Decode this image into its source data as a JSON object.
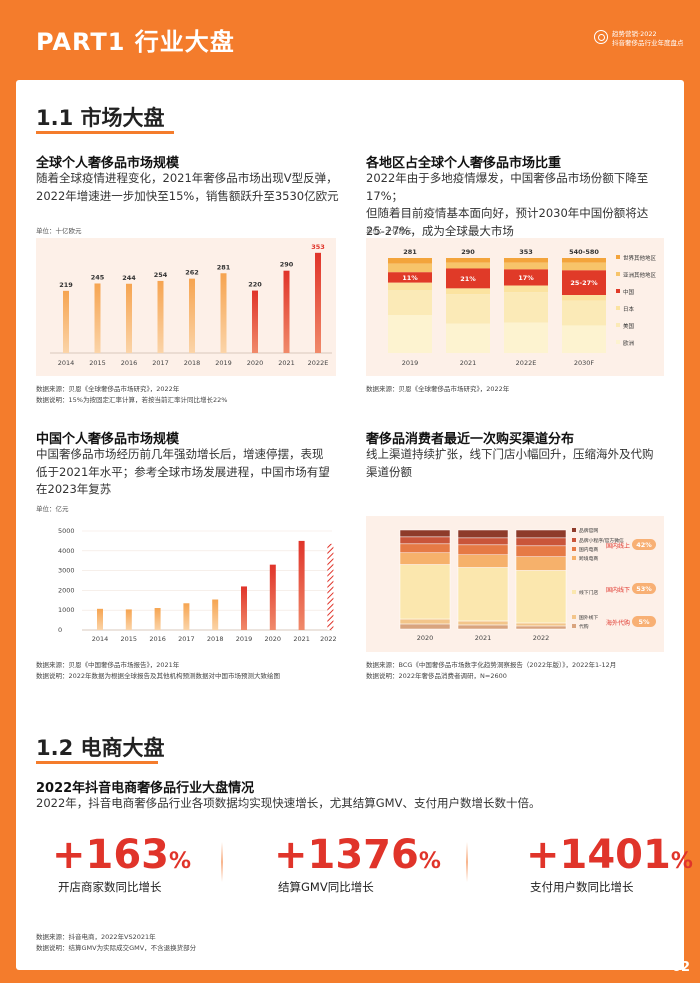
{
  "header": {
    "title": "PART1 行业大盘",
    "brand_line1": "趋势营销·2022",
    "brand_line2": "抖音奢侈品行业年度盘点"
  },
  "section1": {
    "title": "1.1 市场大盘",
    "global": {
      "heading": "全球个人奢侈品市场规模",
      "desc1": "随着全球疫情进程变化，2021年奢侈品市场出现V型反弹，",
      "desc2": "2022年增速进一步加快至15%，销售额跃升至3530亿欧元",
      "unit": "单位：十亿欧元",
      "source": "数据来源：贝恩《全球奢侈品市场研究》，2022年",
      "note": "数据说明：15%为按固定汇率计算，若按当前汇率计同比增长22%"
    },
    "regions": {
      "heading": "各地区占全球个人奢侈品市场比重",
      "desc1": "2022年由于多地疫情爆发，中国奢侈品市场份额下降至17%；",
      "desc2": "但随着目前疫情基本面向好，预计2030年中国份额将达",
      "desc3": "25-27%，成为全球最大市场",
      "unit": "单位：十亿欧元",
      "source": "数据来源：贝恩《全球奢侈品市场研究》，2022年"
    },
    "china": {
      "heading": "中国个人奢侈品市场规模",
      "desc1": "中国奢侈品市场经历前几年强劲增长后，增速停摆，表现",
      "desc2": "低于2021年水平；参考全球市场发展进程，中国市场有望",
      "desc3": "在2023年复苏",
      "unit": "单位：亿元",
      "source": "数据来源：贝恩《中国奢侈品市场报告》，2021年",
      "note": "数据说明：2022年数据为根据全球报告及其他机构预测数据对中国市场预测大致绘图"
    },
    "channels": {
      "heading": "奢侈品消费者最近一次购买渠道分布",
      "desc1": "线上渠道持续扩张，线下门店小幅回升，压缩海外及代购",
      "desc2": "渠道份额",
      "source": "数据来源：BCG《中国奢侈品市场数字化趋势洞察报告（2022年版）》，2022年1-12月",
      "note": "数据说明：2022年奢侈品消费者调研，N=2600"
    }
  },
  "section2": {
    "title": "1.2 电商大盘",
    "heading": "2022年抖音电商奢侈品行业大盘情况",
    "desc": "2022年，抖音电商奢侈品行业各项数据均实现快速增长，尤其结算GMV、支付用户数增长数十倍。",
    "stats": [
      {
        "num": "+163",
        "pct": "%",
        "label": "开店商家数同比增长"
      },
      {
        "num": "+1376",
        "pct": "%",
        "label": "结算GMV同比增长"
      },
      {
        "num": "+1401",
        "pct": "%",
        "label": "支付用户数同比增长"
      }
    ],
    "source": "数据来源：抖音电商，2022年VS2021年",
    "note": "数据说明：结算GMV为实际成交GMV，不含退换货部分"
  },
  "page_number": "02",
  "chart_data": [
    {
      "type": "bar",
      "categories": [
        "2014",
        "2015",
        "2016",
        "2017",
        "2018",
        "2019",
        "2020",
        "2021",
        "2022E"
      ],
      "values": [
        219,
        245,
        244,
        254,
        262,
        281,
        220,
        290,
        353
      ],
      "ylim": [
        0,
        370
      ]
    },
    {
      "type": "bar",
      "stacked": true,
      "categories": [
        "2019",
        "2021",
        "2022E",
        "2030F"
      ],
      "totals": [
        "281",
        "290",
        "353",
        "540-580"
      ],
      "series_labels": [
        "世界其他地区",
        "亚洲其他地区",
        "中国",
        "日本",
        "美国",
        "欧洲"
      ],
      "china_labels": [
        "11%",
        "21%",
        "17%",
        "25-27%"
      ],
      "colors": [
        "#f3a43b",
        "#f7c46a",
        "#e03a28",
        "#fbe3a0",
        "#fbeab7",
        "#fdf3d0"
      ]
    },
    {
      "type": "bar",
      "categories": [
        "2014",
        "2015",
        "2016",
        "2017",
        "2018",
        "2019",
        "2020",
        "2021",
        "2022E"
      ],
      "values": [
        1070,
        1040,
        1110,
        1350,
        1540,
        2200,
        3300,
        4500,
        4350
      ],
      "yticks": [
        "0",
        "1000",
        "2000",
        "3000",
        "4000",
        "5000"
      ],
      "ylim": [
        0,
        5000
      ]
    },
    {
      "type": "bar",
      "stacked": true,
      "categories": [
        "2020",
        "2021",
        "2022"
      ],
      "series_labels": [
        "品牌官网",
        "品牌小程序/官方微信",
        "国内电商",
        "跨境电商",
        "线下门店",
        "国外线下",
        "代购"
      ],
      "groups": [
        {
          "label": "国内线上",
          "value": "42%"
        },
        {
          "label": "国内线下",
          "value": "53%"
        },
        {
          "label": "海外代购",
          "value": "5%"
        }
      ]
    }
  ]
}
